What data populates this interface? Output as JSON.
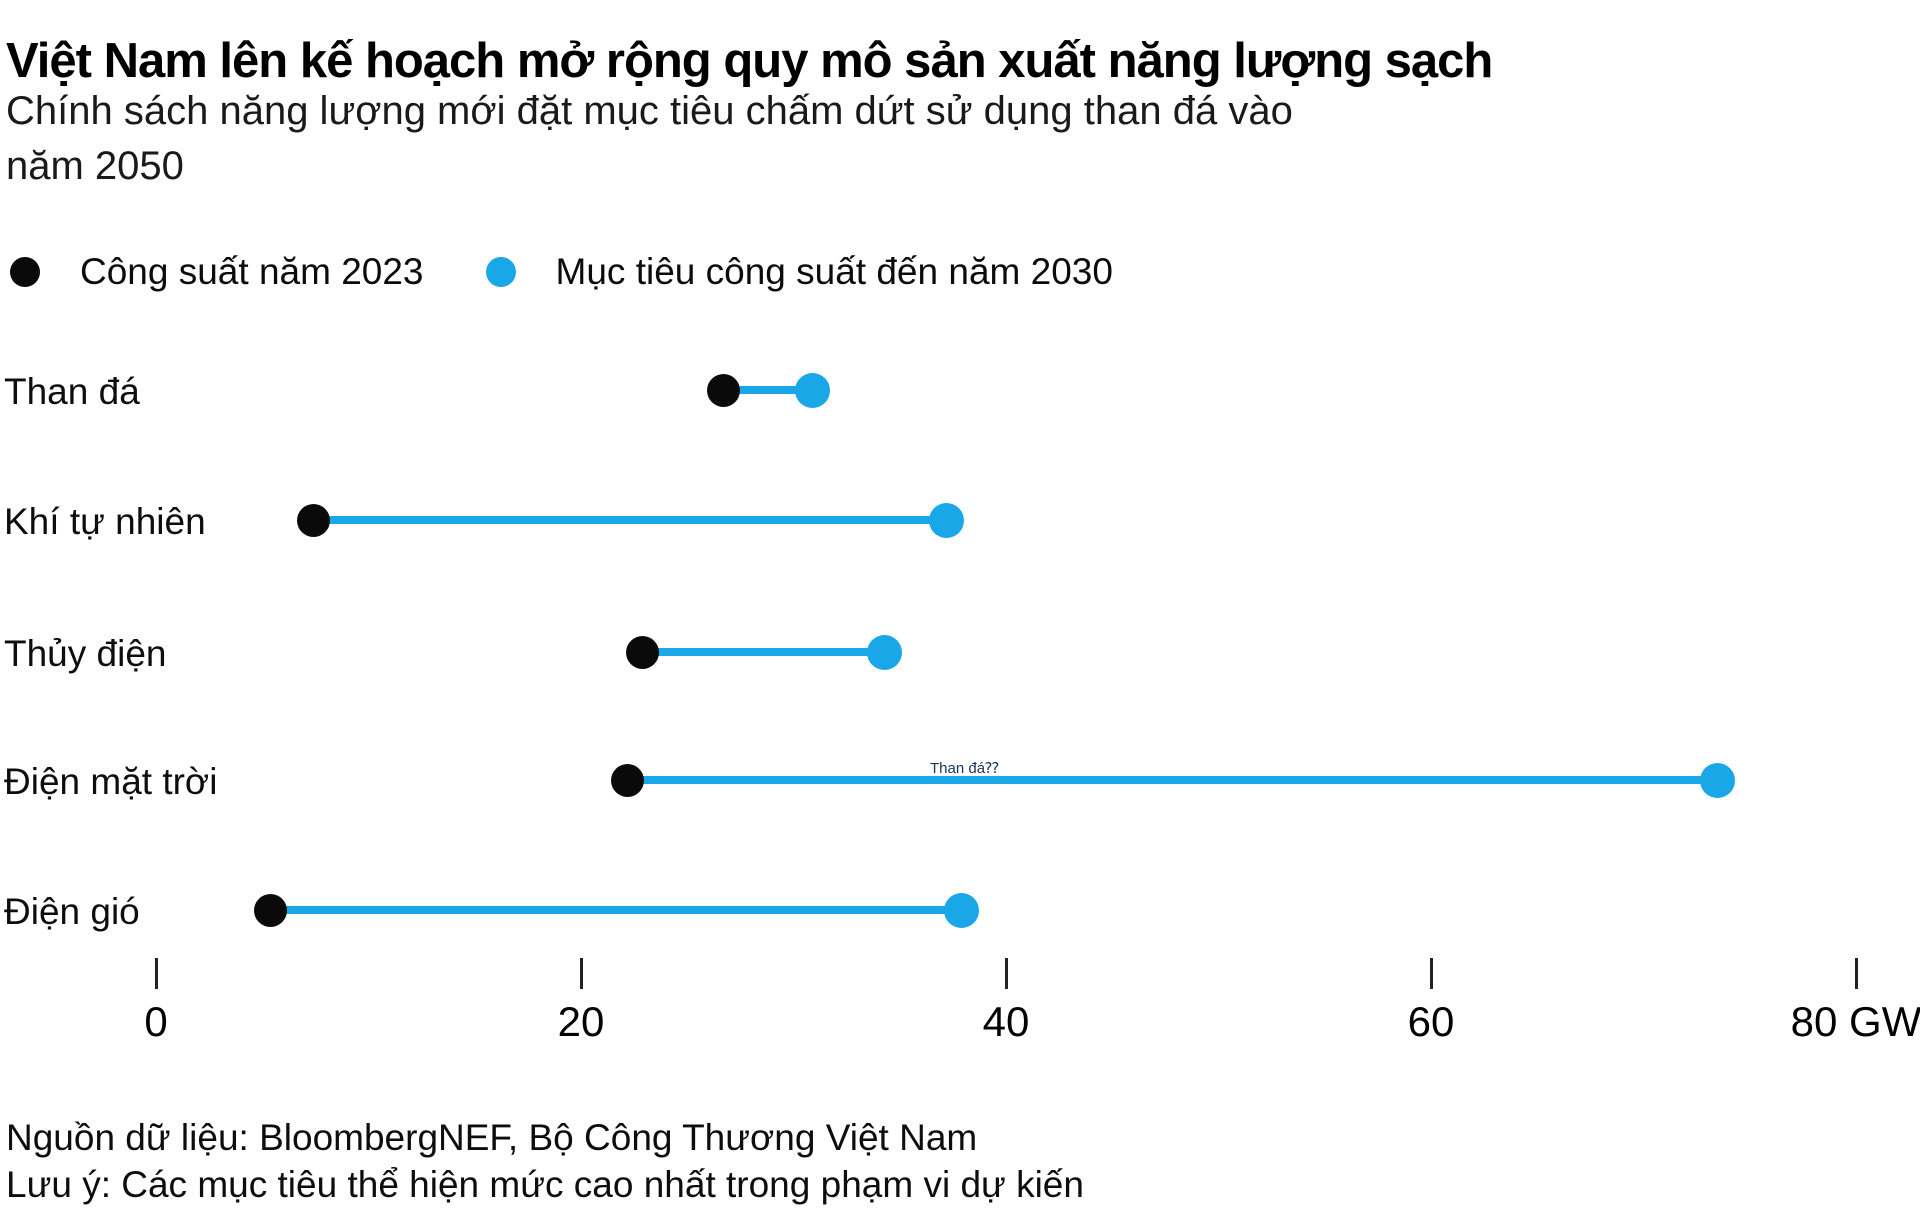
{
  "header": {
    "title": "Việt Nam lên kế hoạch mở rộng quy mô sản xuất năng lượng sạch",
    "subtitle": "Chính sách năng lượng mới đặt mục tiêu chấm dứt sử dụng than đá vào\nnăm 2050"
  },
  "legend": {
    "items": [
      {
        "label": "Công suất năm 2023",
        "color": "#0a0a0a"
      },
      {
        "label": "Mục tiêu công suất đến năm 2030",
        "color": "#1aa7e8"
      }
    ]
  },
  "chart_data": {
    "type": "scatter",
    "subtype": "dumbbell",
    "unit": "GW",
    "categories": [
      "Than đá",
      "Khí tự nhiên",
      "Thủy điện",
      "Điện mặt trời",
      "Điện gió"
    ],
    "series": [
      {
        "name": "Công suất năm 2023",
        "color": "#0a0a0a",
        "values": [
          26.7,
          7.4,
          22.9,
          22.2,
          5.4
        ]
      },
      {
        "name": "Mục tiêu công suất đến năm 2030",
        "color": "#1aa7e8",
        "values": [
          30.9,
          37.2,
          34.3,
          73.5,
          37.9
        ]
      }
    ],
    "connector_color": "#1aa7e8",
    "xlim": [
      0,
      80
    ],
    "xticks": [
      0,
      20,
      40,
      60,
      80
    ],
    "xtick_labels": [
      "0",
      "20",
      "40",
      "60",
      "80 GW"
    ],
    "grid": false,
    "legend_position": "top",
    "stray_annotation": "Than đá⁇"
  },
  "footer": {
    "source": "Nguồn dữ liệu: BloombergNEF, Bộ Công Thương Việt Nam",
    "note": "Lưu ý: Các mục tiêu thể hiện mức cao nhất trong phạm vi dự kiến"
  }
}
